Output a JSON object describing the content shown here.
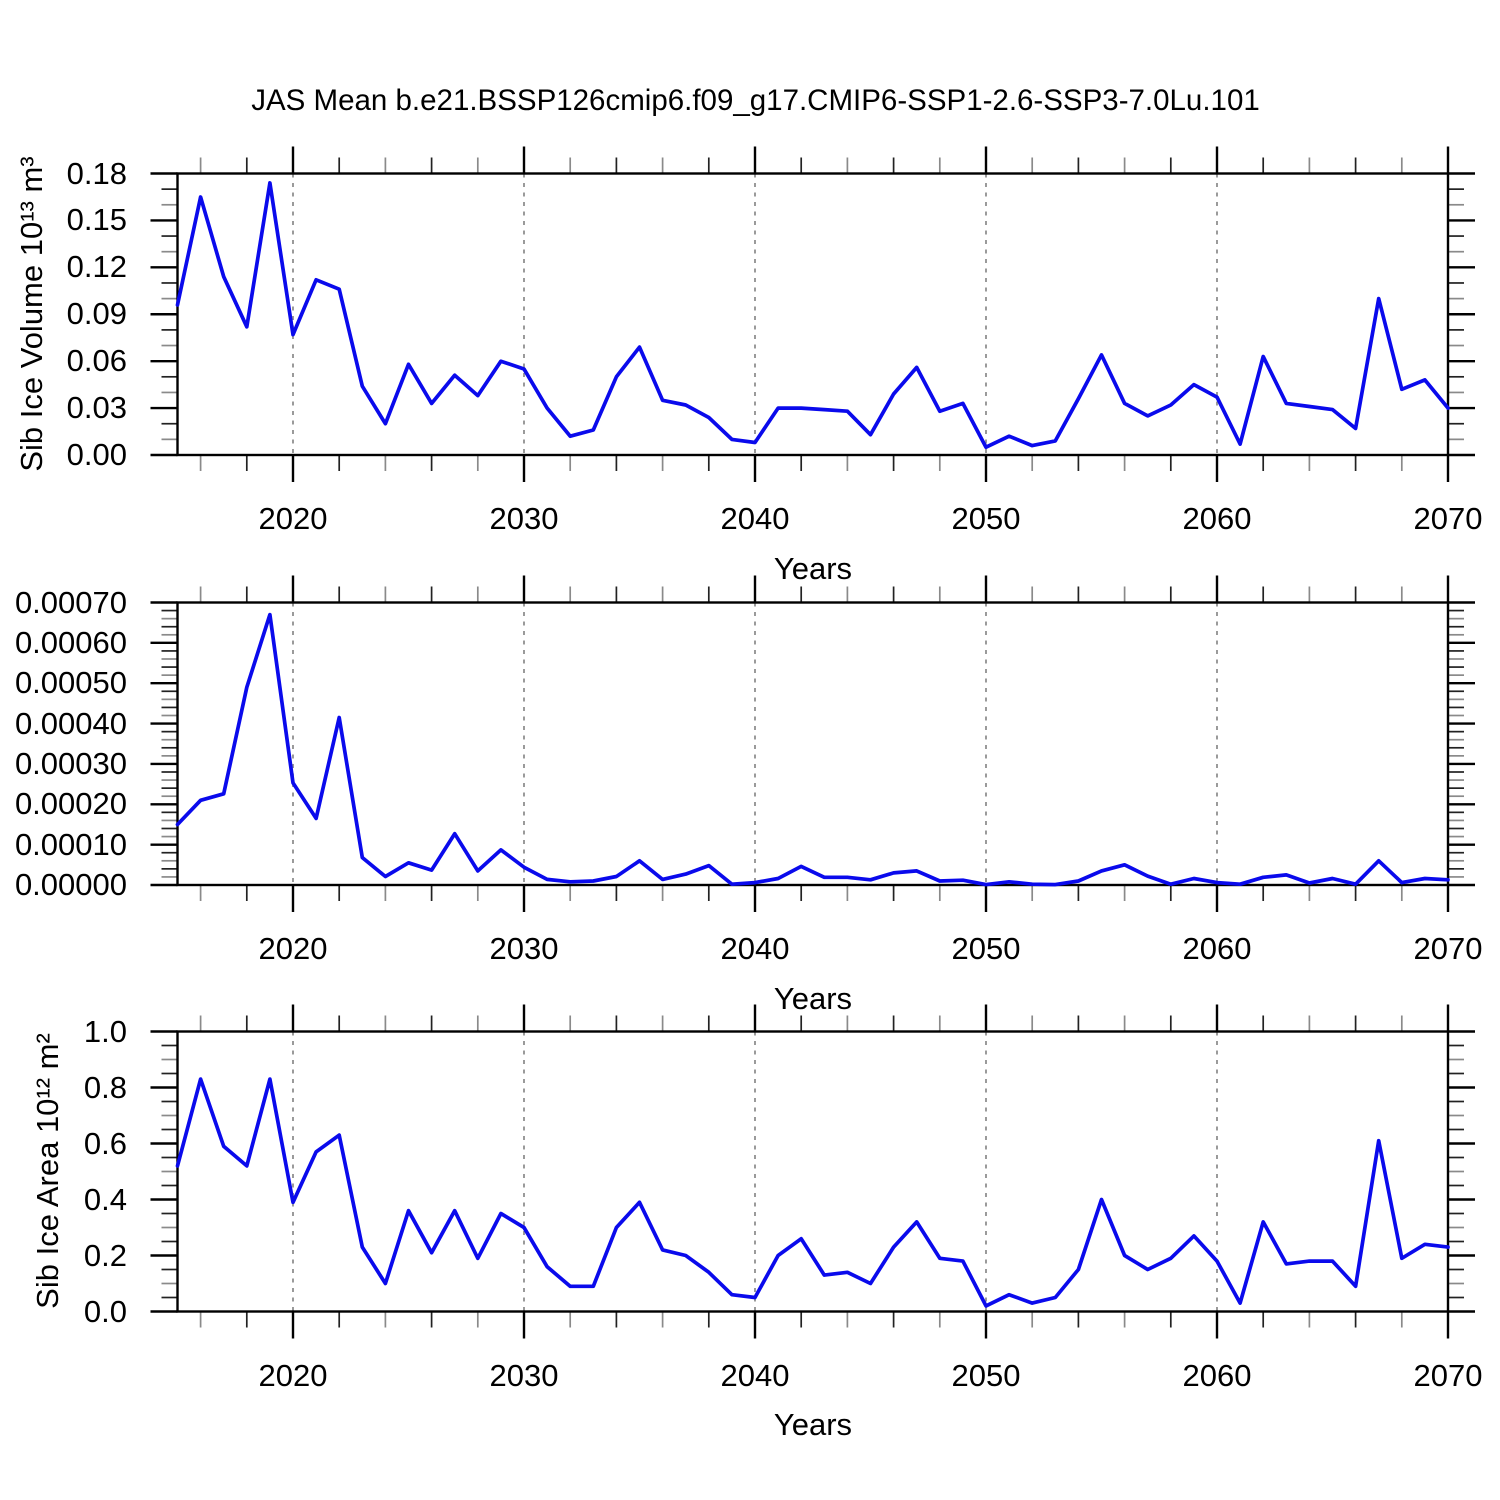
{
  "title": "JAS Mean b.e21.BSSP126cmip6.f09_g17.CMIP6-SSP1-2.6-SSP3-7.0Lu.101",
  "line_color": "#0a0aec",
  "grid_color": "#909090",
  "chart_data": [
    {
      "type": "line",
      "panel": "sib-ice-volume",
      "ylabel": "Sib Ice Volume 10¹³ m³",
      "xlabel": "Years",
      "years_start": 2015,
      "years_end": 2070,
      "xlim": [
        2015,
        2070
      ],
      "x_major_ticks": [
        2020,
        2030,
        2040,
        2050,
        2060,
        2070
      ],
      "x_tick_labels": [
        "2020",
        "2030",
        "2040",
        "2050",
        "2060",
        "2070"
      ],
      "x_minor_step": 2,
      "gridlines_x": [
        2020,
        2030,
        2040,
        2050,
        2060
      ],
      "ylim": [
        0,
        0.18
      ],
      "y_major_step": 0.03,
      "y_minor_step": 0.01,
      "y_tick_labels": [
        "0.00",
        "0.03",
        "0.06",
        "0.09",
        "0.12",
        "0.15",
        "0.18"
      ],
      "values": [
        0.096,
        0.165,
        0.114,
        0.082,
        0.174,
        0.077,
        0.112,
        0.106,
        0.044,
        0.02,
        0.058,
        0.033,
        0.051,
        0.038,
        0.06,
        0.055,
        0.03,
        0.012,
        0.016,
        0.05,
        0.069,
        0.035,
        0.032,
        0.024,
        0.01,
        0.008,
        0.03,
        0.03,
        0.029,
        0.028,
        0.013,
        0.039,
        0.056,
        0.028,
        0.033,
        0.005,
        0.012,
        0.006,
        0.009,
        0.036,
        0.064,
        0.033,
        0.025,
        0.032,
        0.045,
        0.037,
        0.007,
        0.063,
        0.033,
        0.031,
        0.029,
        0.017,
        0.1,
        0.042,
        0.048,
        0.03
      ]
    },
    {
      "type": "line",
      "panel": "sib-ice-volume-tendency",
      "ylabel": "",
      "xlabel": "Years",
      "years_start": 2015,
      "years_end": 2070,
      "xlim": [
        2015,
        2070
      ],
      "x_major_ticks": [
        2020,
        2030,
        2040,
        2050,
        2060,
        2070
      ],
      "x_tick_labels": [
        "2020",
        "2030",
        "2040",
        "2050",
        "2060",
        "2070"
      ],
      "x_minor_step": 2,
      "gridlines_x": [
        2020,
        2030,
        2040,
        2050,
        2060
      ],
      "ylim": [
        0,
        0.0007
      ],
      "y_major_step": 0.0001,
      "y_minor_step": 2e-05,
      "y_tick_labels": [
        "0.00000",
        "0.00010",
        "0.00020",
        "0.00030",
        "0.00040",
        "0.00050",
        "0.00060",
        "0.00070"
      ],
      "values": [
        0.00015,
        0.00021,
        0.000226,
        0.00049,
        0.00067,
        0.000253,
        0.000165,
        0.000415,
        6.8e-05,
        2.1e-05,
        5.5e-05,
        3.7e-05,
        0.000127,
        3.5e-05,
        8.7e-05,
        4.4e-05,
        1.4e-05,
        8e-06,
        1e-05,
        2.1e-05,
        6e-05,
        1.4e-05,
        2.7e-05,
        4.8e-05,
        2e-06,
        6e-06,
        1.6e-05,
        4.6e-05,
        1.9e-05,
        1.9e-05,
        1.3e-05,
        3e-05,
        3.5e-05,
        1e-05,
        1.2e-05,
        1e-06,
        8e-06,
        2e-06,
        1e-06,
        1e-05,
        3.5e-05,
        5e-05,
        2.2e-05,
        2e-06,
        1.6e-05,
        6e-06,
        2e-06,
        1.9e-05,
        2.5e-05,
        5e-06,
        1.6e-05,
        2e-06,
        6e-05,
        6e-06,
        1.6e-05,
        1.3e-05
      ]
    },
    {
      "type": "line",
      "panel": "sib-ice-area",
      "ylabel": "Sib Ice Area 10¹² m²",
      "xlabel": "Years",
      "years_start": 2015,
      "years_end": 2070,
      "xlim": [
        2015,
        2070
      ],
      "x_major_ticks": [
        2020,
        2030,
        2040,
        2050,
        2060,
        2070
      ],
      "x_tick_labels": [
        "2020",
        "2030",
        "2040",
        "2050",
        "2060",
        "2070"
      ],
      "x_minor_step": 2,
      "gridlines_x": [
        2020,
        2030,
        2040,
        2050,
        2060
      ],
      "ylim": [
        0,
        1.0
      ],
      "y_major_step": 0.2,
      "y_minor_step": 0.05,
      "y_tick_labels": [
        "0.0",
        "0.2",
        "0.4",
        "0.6",
        "0.8",
        "1.0"
      ],
      "values": [
        0.52,
        0.83,
        0.59,
        0.52,
        0.83,
        0.39,
        0.57,
        0.63,
        0.23,
        0.1,
        0.36,
        0.21,
        0.36,
        0.19,
        0.35,
        0.3,
        0.16,
        0.09,
        0.09,
        0.3,
        0.39,
        0.22,
        0.2,
        0.14,
        0.06,
        0.05,
        0.2,
        0.26,
        0.13,
        0.14,
        0.1,
        0.23,
        0.32,
        0.19,
        0.18,
        0.02,
        0.06,
        0.03,
        0.05,
        0.15,
        0.4,
        0.2,
        0.15,
        0.19,
        0.27,
        0.18,
        0.03,
        0.32,
        0.17,
        0.18,
        0.18,
        0.09,
        0.61,
        0.19,
        0.24,
        0.23
      ]
    }
  ]
}
